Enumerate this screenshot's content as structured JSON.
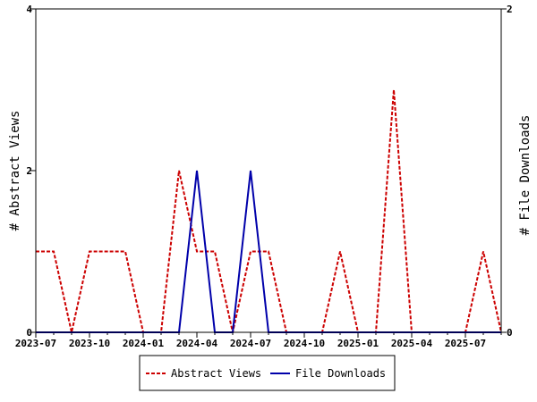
{
  "chart_data": {
    "type": "line",
    "x_tick_labels": [
      "2023-07",
      "2023-10",
      "2024-01",
      "2024-04",
      "2024-07",
      "2024-10",
      "2025-01",
      "2025-04",
      "2025-07"
    ],
    "x_tick_months": [
      "2023-07",
      "2023-10",
      "2024-01",
      "2024-04",
      "2024-07",
      "2024-10",
      "2025-01",
      "2025-04",
      "2025-07"
    ],
    "x_range": [
      "2023-07",
      "2025-09"
    ],
    "x": [
      "2023-07",
      "2023-08",
      "2023-09",
      "2023-10",
      "2023-11",
      "2023-12",
      "2024-01",
      "2024-02",
      "2024-03",
      "2024-04",
      "2024-05",
      "2024-06",
      "2024-07",
      "2024-08",
      "2024-09",
      "2024-10",
      "2024-11",
      "2024-12",
      "2025-01",
      "2025-02",
      "2025-03",
      "2025-04",
      "2025-05",
      "2025-06",
      "2025-07",
      "2025-08",
      "2025-09"
    ],
    "y_left": {
      "label": "# Abstract Views",
      "range": [
        0,
        4
      ],
      "ticks": [
        "0",
        "2",
        "4"
      ],
      "tick_values": [
        0,
        2,
        4
      ]
    },
    "y_right": {
      "label": "# File Downloads",
      "range": [
        0,
        2
      ],
      "ticks": [
        "0",
        "2"
      ],
      "tick_values": [
        0,
        2
      ]
    },
    "series": [
      {
        "name": "Abstract Views",
        "axis": "left",
        "color": "#cc0000",
        "dash": true,
        "values": [
          1,
          1,
          0,
          1,
          1,
          1,
          0,
          0,
          2,
          1,
          1,
          0,
          1,
          1,
          0,
          0,
          0,
          1,
          0,
          0,
          3,
          0,
          0,
          0,
          0,
          1,
          0
        ]
      },
      {
        "name": "File Downloads",
        "axis": "right",
        "color": "#0000aa",
        "dash": false,
        "values": [
          0,
          0,
          0,
          0,
          0,
          0,
          0,
          0,
          0,
          1,
          0,
          0,
          1,
          0,
          0,
          0,
          0,
          0,
          0,
          0,
          0,
          0,
          0,
          0,
          0,
          0,
          0
        ]
      }
    ],
    "legend": {
      "position": "bottom",
      "entries": [
        "Abstract Views",
        "File Downloads"
      ]
    },
    "grid": false
  }
}
